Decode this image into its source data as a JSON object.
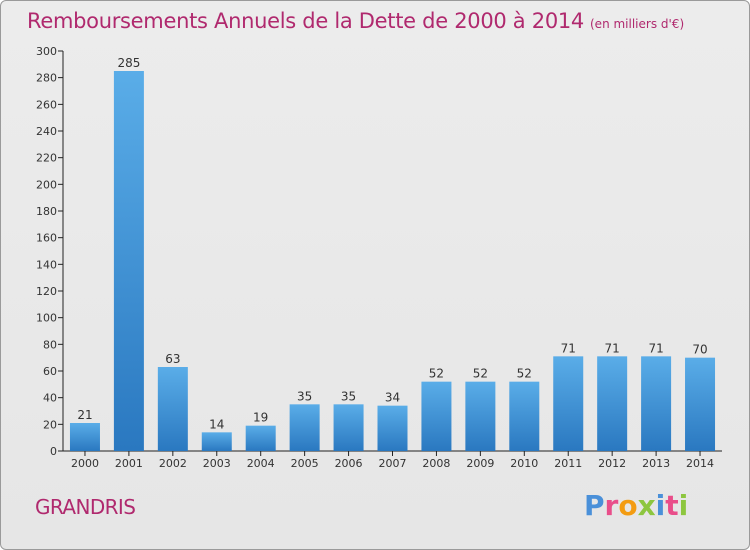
{
  "title": "Remboursements Annuels de la Dette de 2000 à 2014",
  "subtitle": "(en milliers d'€)",
  "commune": "GRANDRIS",
  "logo": {
    "letters": [
      {
        "char": "P",
        "color": "#4a90d9"
      },
      {
        "char": "r",
        "color": "#e94e8a"
      },
      {
        "char": "o",
        "color": "#f39c12"
      },
      {
        "char": "x",
        "color": "#8dc63f"
      },
      {
        "char": "i",
        "color": "#4a90d9"
      },
      {
        "char": "t",
        "color": "#e94e8a"
      },
      {
        "char": "i",
        "color": "#8dc63f"
      }
    ]
  },
  "colors": {
    "title": "#b0296e",
    "bar_light": "#5aade8",
    "bar_dark": "#2a78c0"
  },
  "chart_data": {
    "type": "bar",
    "title": "Remboursements Annuels de la Dette de 2000 à 2014",
    "subtitle": "(en milliers d'€)",
    "categories": [
      "2000",
      "2001",
      "2002",
      "2003",
      "2004",
      "2005",
      "2006",
      "2007",
      "2008",
      "2009",
      "2010",
      "2011",
      "2012",
      "2013",
      "2014"
    ],
    "values": [
      21,
      285,
      63,
      14,
      19,
      35,
      35,
      34,
      52,
      52,
      52,
      71,
      71,
      71,
      70
    ],
    "ylim": [
      0,
      300
    ],
    "yticks": [
      0,
      20,
      40,
      60,
      80,
      100,
      120,
      140,
      160,
      180,
      200,
      220,
      240,
      260,
      280,
      300
    ],
    "grid": false,
    "xlabel": "",
    "ylabel": ""
  }
}
